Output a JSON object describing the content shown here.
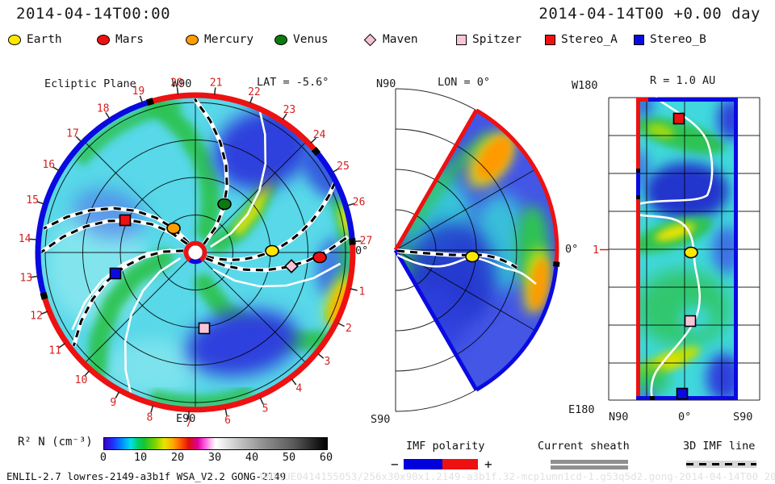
{
  "header": {
    "left_timestamp": "2014-04-14T00:00",
    "right_timestamp": "2014-04-14T00 +0.00 day"
  },
  "legend": {
    "items": [
      {
        "label": "Earth",
        "symbol": "circle",
        "color": "#ffe800"
      },
      {
        "label": "Mars",
        "symbol": "circle",
        "color": "#ee1111"
      },
      {
        "label": "Mercury",
        "symbol": "circle",
        "color": "#ff9d00"
      },
      {
        "label": "Venus",
        "symbol": "circle",
        "color": "#0c7a10"
      },
      {
        "label": "Maven",
        "symbol": "diamond",
        "color": "#f6c3d6"
      },
      {
        "label": "Spitzer",
        "symbol": "square",
        "color": "#f9c6d8"
      },
      {
        "label": "Stereo_A",
        "symbol": "square",
        "color": "#ee1111"
      },
      {
        "label": "Stereo_B",
        "symbol": "square",
        "color": "#0a0ae0"
      }
    ]
  },
  "panels": {
    "ecliptic": {
      "title": "Ecliptic Plane",
      "lat_label": "LAT = -5.6°",
      "top_label": "W90",
      "bottom_label": "E90",
      "zero_label": "0°",
      "day_labels": [
        "1",
        "2",
        "3",
        "4",
        "5",
        "6",
        "7",
        "8",
        "9",
        "10",
        "11",
        "12",
        "13",
        "14",
        "15",
        "16",
        "17",
        "18",
        "19",
        "20",
        "21",
        "22",
        "23",
        "24",
        "25",
        "26",
        "27"
      ]
    },
    "meridional": {
      "title": "LON = 0°",
      "top_label": "N90",
      "bottom_label": "S90",
      "zero_label": "0°"
    },
    "radial_map": {
      "title": "R = 1.0 AU",
      "top_left_label": "W180",
      "bottom_left_label": "E180",
      "left_tick_label": "1",
      "axis_labels": [
        "N90",
        "0°",
        "S90"
      ]
    }
  },
  "colorbar": {
    "label": "R² N (cm⁻³)",
    "ticks": [
      "0",
      "10",
      "20",
      "30",
      "40",
      "50",
      "60"
    ],
    "range": [
      0,
      60
    ],
    "gradient_stops": [
      "#3800c8",
      "#2030ff",
      "#008cff",
      "#00e0e8",
      "#18c430",
      "#e8e400",
      "#ffa800",
      "#dd0f0f",
      "#dd0099",
      "#ff54e0",
      "#ffffff",
      "#969696",
      "#000000"
    ]
  },
  "bottom_legend": {
    "imf_polarity": {
      "title": "IMF polarity",
      "minus_label": "−",
      "plus_label": "+",
      "negative_color": "#0000dd",
      "positive_color": "#ee1111"
    },
    "current_sheath": {
      "title": "Current sheath",
      "color": "#909090"
    },
    "imf_line": {
      "title": "3D IMF line"
    }
  },
  "footer": {
    "model_info": "ENLIL-2.7 lowres-2149-a3b1f WSA_V2.2 GONG-2149",
    "watermark": "UNIQUE0414155053/256x30x90x1.2149-a3b1f.32-mcp1umn1cd-1.g53q5d2.gong-2014-04-14T00      2014-04-14"
  },
  "chart_data": [
    {
      "type": "heatmap",
      "panel": "ecliptic_plane",
      "title": "Ecliptic Plane",
      "quantity": "R² N (cm⁻³)",
      "value_range": [
        0,
        60
      ],
      "radial_range_au": [
        0,
        2.1
      ],
      "slice_latitude_deg": -5.6,
      "angular_tick_days": [
        1,
        2,
        3,
        4,
        5,
        6,
        7,
        8,
        9,
        10,
        11,
        12,
        13,
        14,
        15,
        16,
        17,
        18,
        19,
        20,
        21,
        22,
        23,
        24,
        25,
        26,
        27
      ],
      "polarity_ring_segments": [
        {
          "from_day": 26.7,
          "to_day": 12.3,
          "polarity": "+",
          "color": "#ee1111"
        },
        {
          "from_day": 12.3,
          "to_day": 19.0,
          "polarity": "-",
          "color": "#0a0ae0"
        },
        {
          "from_day": 19.0,
          "to_day": 24.0,
          "polarity": "+",
          "color": "#ee1111"
        },
        {
          "from_day": 24.0,
          "to_day": 26.7,
          "polarity": "-",
          "color": "#0a0ae0"
        }
      ],
      "markers": [
        {
          "name": "Mercury",
          "r_au": 0.43,
          "angle_deg": 132
        },
        {
          "name": "Venus",
          "r_au": 0.74,
          "angle_deg": 59
        },
        {
          "name": "Earth",
          "r_au": 1.0,
          "angle_deg": 1
        },
        {
          "name": "Maven",
          "r_au": 1.28,
          "angle_deg": -8
        },
        {
          "name": "Mars",
          "r_au": 1.64,
          "angle_deg": -2
        },
        {
          "name": "Stereo_A",
          "r_au": 1.02,
          "angle_deg": 155
        },
        {
          "name": "Stereo_B",
          "r_au": 1.09,
          "angle_deg": -165
        },
        {
          "name": "Spitzer",
          "r_au": 1.01,
          "angle_deg": -83
        }
      ]
    },
    {
      "type": "heatmap",
      "panel": "meridional_plane",
      "title": "LON = 0°",
      "quantity": "R² N (cm⁻³)",
      "value_range": [
        0,
        60
      ],
      "radial_range_au": [
        0,
        2.1
      ],
      "data_latitude_extent_deg": [
        -60,
        60
      ],
      "markers": [
        {
          "name": "Earth",
          "r_au": 1.0,
          "lat_deg": -2
        }
      ]
    },
    {
      "type": "heatmap",
      "panel": "sphere_r_1au",
      "title": "R = 1.0 AU",
      "quantity": "R² N (cm⁻³)",
      "value_range": [
        0,
        60
      ],
      "latitude_extent_deg": [
        -60,
        60
      ],
      "longitude_extent": [
        "W180",
        "E180"
      ],
      "markers": [
        {
          "name": "Stereo_A",
          "lat_deg": 7,
          "lon_deg_from_w180": 25
        },
        {
          "name": "Earth",
          "lat_deg": -8,
          "lon_deg_from_w180": 184
        },
        {
          "name": "Spitzer",
          "lat_deg": -7,
          "lon_deg_from_w180": 266
        },
        {
          "name": "Stereo_B",
          "lat_deg": 3,
          "lon_deg_from_w180": 352
        }
      ]
    }
  ]
}
